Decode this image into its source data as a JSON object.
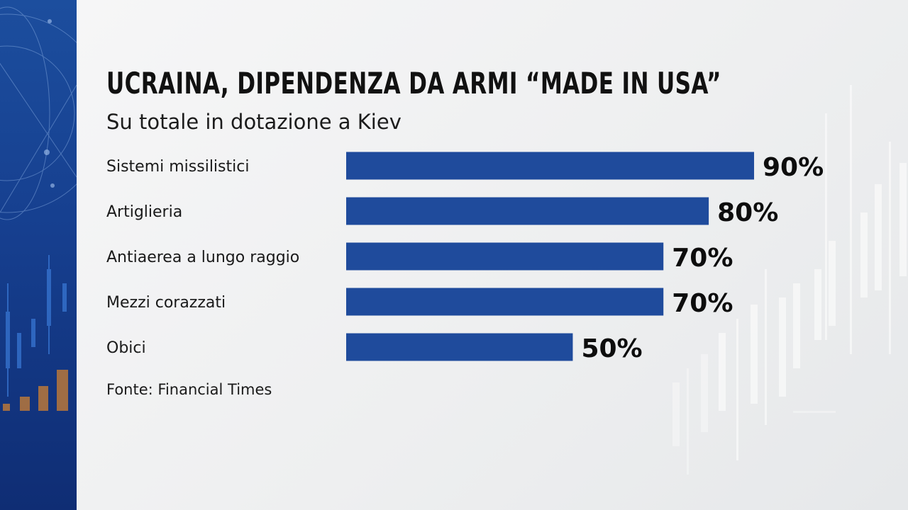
{
  "chart_data": {
    "type": "bar",
    "orientation": "horizontal",
    "title": "UCRAINA, DIPENDENZA DA ARMI “MADE IN USA”",
    "subtitle": "Su totale in dotazione a Kiev",
    "categories": [
      "Sistemi missilistici",
      "Artiglieria",
      "Antiaerea a lungo raggio",
      "Mezzi corazzati",
      "Obici"
    ],
    "values": [
      90,
      80,
      70,
      70,
      50
    ],
    "value_labels": [
      "90%",
      "80%",
      "70%",
      "70%",
      "50%"
    ],
    "unit": "%",
    "xlim": [
      0,
      100
    ],
    "grid": false,
    "bar_color": "#1f4b9c",
    "source": "Fonte: Financial Times"
  },
  "colors": {
    "panel_blue": "#1c4e9e",
    "background": "#f1f2f3",
    "accent_orange": "#b8773a"
  }
}
